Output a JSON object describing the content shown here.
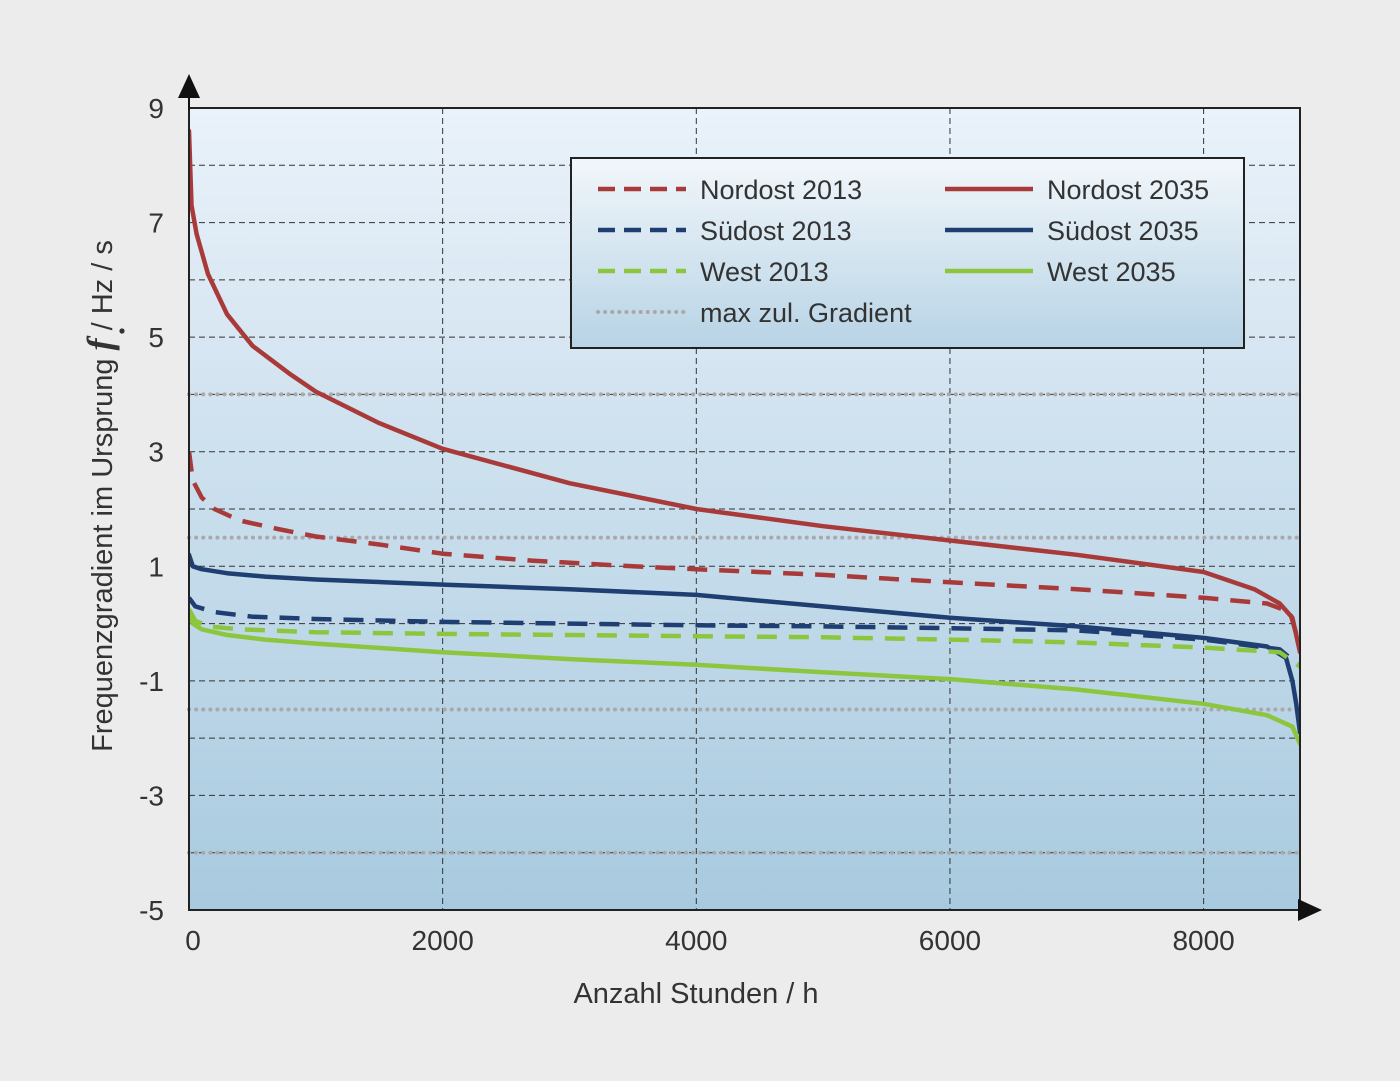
{
  "chart_data": {
    "type": "line",
    "title": "",
    "xlabel": "Anzahl Stunden / h",
    "ylabel_parts": [
      "Frequenzgradient im Ursprung ",
      "f",
      " / Hz / s"
    ],
    "xlim": [
      0,
      8760
    ],
    "ylim": [
      -5,
      9
    ],
    "x_ticks": [
      0,
      2000,
      4000,
      6000,
      8000
    ],
    "y_ticks": [
      9,
      7,
      5,
      3,
      1,
      -1,
      -3,
      -5
    ],
    "grid": true,
    "legend_position": "top-right",
    "reference_lines": {
      "name": "max zul. Gradient",
      "color": "#a9a9a9",
      "values": [
        4,
        1.5,
        -1.5,
        -4
      ]
    },
    "series": [
      {
        "name": "Nordost 2013",
        "color": "#a93a3a",
        "style": "dashed",
        "x": [
          0,
          30,
          100,
          200,
          400,
          700,
          1000,
          1500,
          2000,
          2700,
          3500,
          4000,
          5000,
          6000,
          7000,
          8000,
          8500,
          8680,
          8760
        ],
        "y": [
          3.0,
          2.5,
          2.2,
          2.0,
          1.8,
          1.65,
          1.52,
          1.38,
          1.22,
          1.1,
          1.0,
          0.95,
          0.85,
          0.72,
          0.6,
          0.45,
          0.35,
          0.2,
          -0.4
        ]
      },
      {
        "name": "Nordost 2035",
        "color": "#a93a3a",
        "style": "solid",
        "x": [
          0,
          20,
          60,
          150,
          300,
          500,
          800,
          1000,
          1500,
          2000,
          3000,
          4000,
          5000,
          6000,
          7000,
          8000,
          8400,
          8600,
          8700,
          8760
        ],
        "y": [
          8.6,
          7.3,
          6.8,
          6.1,
          5.4,
          4.85,
          4.35,
          4.05,
          3.5,
          3.05,
          2.45,
          2.0,
          1.7,
          1.45,
          1.2,
          0.9,
          0.6,
          0.35,
          0.1,
          -0.5
        ]
      },
      {
        "name": "Südost 2013",
        "color": "#1f3f73",
        "style": "dashed",
        "x": [
          0,
          50,
          200,
          500,
          1000,
          2000,
          3000,
          4000,
          5000,
          6000,
          7000,
          8000,
          8600,
          8760
        ],
        "y": [
          0.45,
          0.3,
          0.2,
          0.12,
          0.08,
          0.03,
          0.0,
          -0.03,
          -0.05,
          -0.08,
          -0.12,
          -0.28,
          -0.45,
          -0.75
        ]
      },
      {
        "name": "Südost 2035",
        "color": "#1f3f73",
        "style": "solid",
        "x": [
          0,
          30,
          100,
          300,
          600,
          1000,
          2000,
          3000,
          4000,
          5000,
          6000,
          7000,
          8000,
          8500,
          8650,
          8700,
          8730,
          8760
        ],
        "y": [
          1.2,
          1.0,
          0.95,
          0.88,
          0.82,
          0.77,
          0.68,
          0.6,
          0.5,
          0.3,
          0.1,
          -0.05,
          -0.25,
          -0.4,
          -0.6,
          -1.0,
          -1.4,
          -1.9
        ]
      },
      {
        "name": "West 2013",
        "color": "#8cc63f",
        "style": "dashed",
        "x": [
          0,
          50,
          150,
          400,
          1000,
          2000,
          3000,
          4000,
          5000,
          6000,
          7000,
          8000,
          8600,
          8760
        ],
        "y": [
          0.25,
          0.05,
          -0.05,
          -0.1,
          -0.15,
          -0.18,
          -0.2,
          -0.22,
          -0.24,
          -0.28,
          -0.33,
          -0.42,
          -0.5,
          -0.75
        ]
      },
      {
        "name": "West 2035",
        "color": "#8cc63f",
        "style": "solid",
        "x": [
          0,
          30,
          100,
          300,
          600,
          1000,
          2000,
          3000,
          4000,
          5000,
          6000,
          7000,
          8000,
          8500,
          8700,
          8760
        ],
        "y": [
          0.2,
          0.0,
          -0.1,
          -0.2,
          -0.28,
          -0.35,
          -0.5,
          -0.62,
          -0.72,
          -0.85,
          -0.97,
          -1.15,
          -1.4,
          -1.6,
          -1.8,
          -2.1
        ]
      }
    ],
    "legend": [
      {
        "label": "Nordost 2013",
        "color": "#a93a3a",
        "style": "dashed"
      },
      {
        "label": "Nordost 2035",
        "color": "#a93a3a",
        "style": "solid"
      },
      {
        "label": "Südost 2013",
        "color": "#1f3f73",
        "style": "dashed"
      },
      {
        "label": "Südost 2035",
        "color": "#1f3f73",
        "style": "solid"
      },
      {
        "label": "West 2013",
        "color": "#8cc63f",
        "style": "dashed"
      },
      {
        "label": "West 2035",
        "color": "#8cc63f",
        "style": "solid"
      },
      {
        "label": "max zul. Gradient",
        "color": "#a9a9a9",
        "style": "dotted"
      }
    ]
  }
}
